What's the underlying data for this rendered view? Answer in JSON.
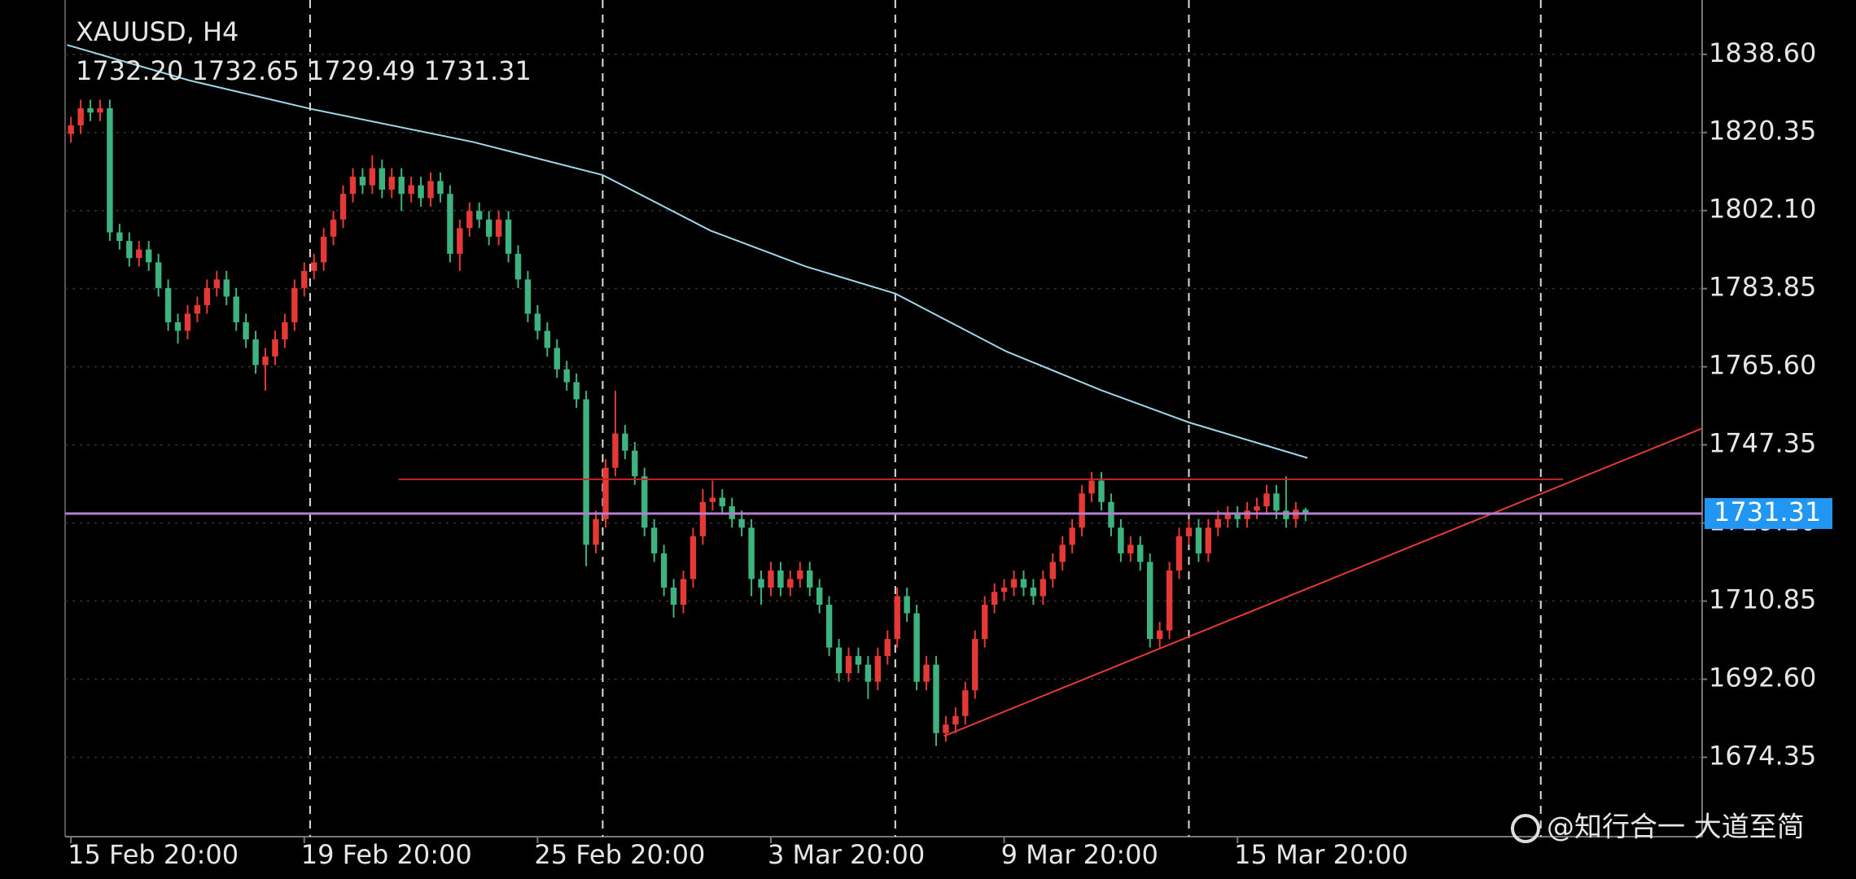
{
  "chart_data": {
    "type": "candlestick",
    "title": "XAUUSD, H4",
    "ohlc_label": "1732.20 1732.65 1729.49 1731.31",
    "up_color": "#e53935",
    "down_color": "#3fb37f",
    "open": [
      1820,
      1822,
      1826,
      1825,
      1826,
      1797,
      1795,
      1791,
      1793,
      1790,
      1784,
      1776,
      1774,
      1778,
      1780,
      1784,
      1786,
      1782,
      1776,
      1772,
      1766,
      1768,
      1772,
      1776,
      1784,
      1788,
      1790,
      1796,
      1800,
      1806,
      1810,
      1808,
      1812,
      1807,
      1810,
      1806,
      1808,
      1805,
      1809,
      1806,
      1792,
      1798,
      1802,
      1800,
      1796,
      1800,
      1792,
      1786,
      1778,
      1774,
      1770,
      1765,
      1762,
      1758,
      1724,
      1730,
      1742,
      1750,
      1746,
      1740,
      1728,
      1722,
      1714,
      1710,
      1716,
      1726,
      1734,
      1735,
      1733,
      1730,
      1728,
      1716,
      1714,
      1718,
      1714,
      1716,
      1718,
      1714,
      1710,
      1700,
      1694,
      1698,
      1696,
      1692,
      1698,
      1702,
      1712,
      1708,
      1692,
      1696,
      1680,
      1682,
      1684,
      1690,
      1702,
      1710,
      1713,
      1714,
      1716,
      1714,
      1712,
      1716,
      1720,
      1724,
      1728,
      1736,
      1739,
      1734,
      1728,
      1722,
      1724,
      1720,
      1702,
      1704,
      1718,
      1726,
      1728,
      1722,
      1728,
      1730,
      1731,
      1730,
      1732,
      1733,
      1736,
      1732,
      1730,
      1732.2
    ],
    "high": [
      1824,
      1828,
      1828,
      1828,
      1828,
      1799,
      1797,
      1795,
      1795,
      1792,
      1786,
      1778,
      1780,
      1782,
      1786,
      1788,
      1788,
      1784,
      1778,
      1774,
      1770,
      1774,
      1778,
      1786,
      1790,
      1792,
      1798,
      1802,
      1808,
      1812,
      1812,
      1815,
      1814,
      1812,
      1812,
      1810,
      1810,
      1811,
      1811,
      1808,
      1800,
      1804,
      1804,
      1802,
      1802,
      1802,
      1794,
      1788,
      1780,
      1776,
      1772,
      1767,
      1764,
      1760,
      1732,
      1744,
      1760,
      1752,
      1748,
      1742,
      1730,
      1724,
      1716,
      1718,
      1728,
      1737,
      1739,
      1737,
      1735,
      1732,
      1730,
      1718,
      1720,
      1720,
      1718,
      1720,
      1720,
      1716,
      1712,
      1702,
      1700,
      1700,
      1698,
      1700,
      1704,
      1714,
      1714,
      1710,
      1698,
      1698,
      1684,
      1686,
      1692,
      1704,
      1712,
      1715,
      1716,
      1718,
      1718,
      1716,
      1718,
      1722,
      1726,
      1730,
      1738,
      1741,
      1741,
      1736,
      1730,
      1726,
      1726,
      1722,
      1706,
      1720,
      1728,
      1730,
      1730,
      1730,
      1732,
      1733,
      1733,
      1734,
      1735,
      1738,
      1738,
      1740,
      1734,
      1732.65
    ],
    "low": [
      1818,
      1820,
      1823,
      1823,
      1795,
      1793,
      1789,
      1789,
      1788,
      1782,
      1774,
      1771,
      1772,
      1776,
      1778,
      1782,
      1780,
      1774,
      1770,
      1764,
      1760,
      1766,
      1770,
      1774,
      1782,
      1786,
      1788,
      1794,
      1798,
      1804,
      1806,
      1806,
      1805,
      1805,
      1802,
      1804,
      1803,
      1803,
      1804,
      1790,
      1788,
      1796,
      1798,
      1794,
      1794,
      1790,
      1784,
      1776,
      1772,
      1768,
      1763,
      1760,
      1756,
      1719,
      1722,
      1728,
      1740,
      1744,
      1738,
      1726,
      1720,
      1712,
      1707,
      1708,
      1714,
      1724,
      1732,
      1731,
      1728,
      1726,
      1712,
      1710,
      1712,
      1712,
      1712,
      1714,
      1712,
      1708,
      1698,
      1692,
      1692,
      1694,
      1688,
      1690,
      1696,
      1700,
      1706,
      1690,
      1690,
      1677,
      1678,
      1680,
      1682,
      1688,
      1700,
      1708,
      1711,
      1712,
      1712,
      1710,
      1710,
      1714,
      1718,
      1722,
      1726,
      1734,
      1732,
      1726,
      1720,
      1720,
      1718,
      1700,
      1700,
      1702,
      1716,
      1724,
      1720,
      1720,
      1726,
      1728,
      1728,
      1728,
      1730,
      1731,
      1730,
      1728,
      1728,
      1729.49
    ],
    "close": [
      1822,
      1826,
      1825,
      1826,
      1797,
      1795,
      1791,
      1793,
      1790,
      1784,
      1776,
      1774,
      1778,
      1780,
      1784,
      1786,
      1782,
      1776,
      1772,
      1766,
      1768,
      1772,
      1776,
      1784,
      1788,
      1790,
      1796,
      1800,
      1806,
      1810,
      1808,
      1812,
      1807,
      1810,
      1806,
      1808,
      1805,
      1809,
      1806,
      1792,
      1798,
      1802,
      1800,
      1796,
      1800,
      1792,
      1786,
      1778,
      1774,
      1770,
      1765,
      1762,
      1758,
      1724,
      1730,
      1742,
      1750,
      1746,
      1740,
      1728,
      1722,
      1714,
      1710,
      1716,
      1726,
      1734,
      1735,
      1733,
      1730,
      1728,
      1716,
      1714,
      1718,
      1714,
      1716,
      1718,
      1714,
      1710,
      1700,
      1694,
      1698,
      1696,
      1692,
      1698,
      1702,
      1712,
      1708,
      1692,
      1696,
      1680,
      1682,
      1684,
      1690,
      1702,
      1710,
      1713,
      1714,
      1716,
      1714,
      1712,
      1716,
      1720,
      1724,
      1728,
      1736,
      1739,
      1734,
      1728,
      1722,
      1724,
      1720,
      1702,
      1704,
      1718,
      1726,
      1728,
      1722,
      1728,
      1730,
      1731,
      1730,
      1732,
      1733,
      1736,
      1732,
      1730,
      1732.2,
      1731.31
    ],
    "xlim": [
      -0.6,
      167.8
    ],
    "xticks": [
      {
        "value": 0,
        "label": "15 Feb 20:00"
      },
      {
        "value": 24,
        "label": "19 Feb 20:00"
      },
      {
        "value": 48,
        "label": "25 Feb 20:00"
      },
      {
        "value": 72,
        "label": "3 Mar 20:00"
      },
      {
        "value": 96,
        "label": "9 Mar 20:00"
      },
      {
        "value": 120,
        "label": "15 Mar 20:00"
      }
    ],
    "ylim": [
      1655.8,
      1851.3
    ],
    "yticks": [
      {
        "value": 1838.6,
        "label": "1838.60"
      },
      {
        "value": 1820.35,
        "label": "1820.35"
      },
      {
        "value": 1802.1,
        "label": "1802.10"
      },
      {
        "value": 1783.85,
        "label": "1783.85"
      },
      {
        "value": 1765.6,
        "label": "1765.60"
      },
      {
        "value": 1747.35,
        "label": "1747.35"
      },
      {
        "value": 1729.1,
        "label": "1729.10"
      },
      {
        "value": 1710.85,
        "label": "1710.85"
      },
      {
        "value": 1692.6,
        "label": "1692.60"
      },
      {
        "value": 1674.35,
        "label": "1674.35"
      }
    ],
    "grid": true,
    "period_separators": [
      24.6,
      54.7,
      84.8,
      115,
      151.2
    ],
    "ma": {
      "color": "#9fd6ea",
      "x": [
        -0.4,
        12.2,
        24.6,
        41.4,
        54.7,
        65.8,
        75.5,
        84.8,
        96.2,
        106,
        115,
        127.2
      ],
      "values": [
        1840.8,
        1832.5,
        1825.9,
        1818.1,
        1810.4,
        1797.4,
        1789.1,
        1782.7,
        1769.2,
        1760.1,
        1752.6,
        1744.3
      ]
    },
    "lines": [
      {
        "x": [
          33.7,
          153.5
        ],
        "values": [
          1739.3,
          1739.3
        ],
        "color": "#c62828"
      },
      {
        "x": [
          89.8,
          167.8
        ],
        "values": [
          1679.3,
          1751.2
        ],
        "color": "#e53935"
      }
    ],
    "last_price": {
      "value": 1731.31,
      "label": "1731.31",
      "line_color": "#b57fd0",
      "box_color": "#2196f3"
    }
  },
  "watermark": "@知行合一 大道至简"
}
